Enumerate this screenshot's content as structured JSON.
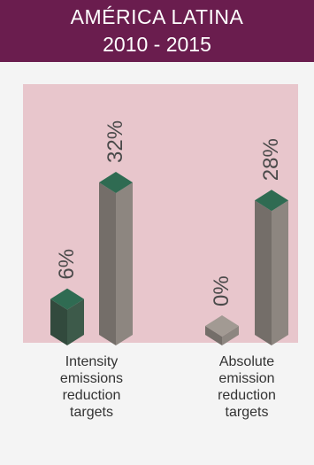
{
  "header": {
    "title": "AMÉRICA  LATINA",
    "subtitle": "2010 - 2015"
  },
  "chart_data": {
    "type": "bar",
    "title": "AMÉRICA  LATINA 2010 - 2015",
    "groups": [
      {
        "label": "Intensity emissions reduction targets",
        "label_lines": [
          "Intensity",
          "emissions",
          "reduction",
          "targets"
        ],
        "bars": [
          {
            "value": 6,
            "label": "6%",
            "color": "#3d5a4a"
          },
          {
            "value": 32,
            "label": "32%",
            "color": "#8d8680"
          }
        ]
      },
      {
        "label": "Absolute emission reduction targets",
        "label_lines": [
          "Absolute",
          "emission",
          "reduction",
          "targets"
        ],
        "bars": [
          {
            "value": 0,
            "label": "0%",
            "color": "#8d8680"
          },
          {
            "value": 28,
            "label": "28%",
            "color": "#8d8680"
          }
        ]
      }
    ],
    "colors": {
      "panel": "#e8c6cc",
      "top_green": "#2f6b52"
    },
    "ylim": [
      0,
      32
    ]
  }
}
